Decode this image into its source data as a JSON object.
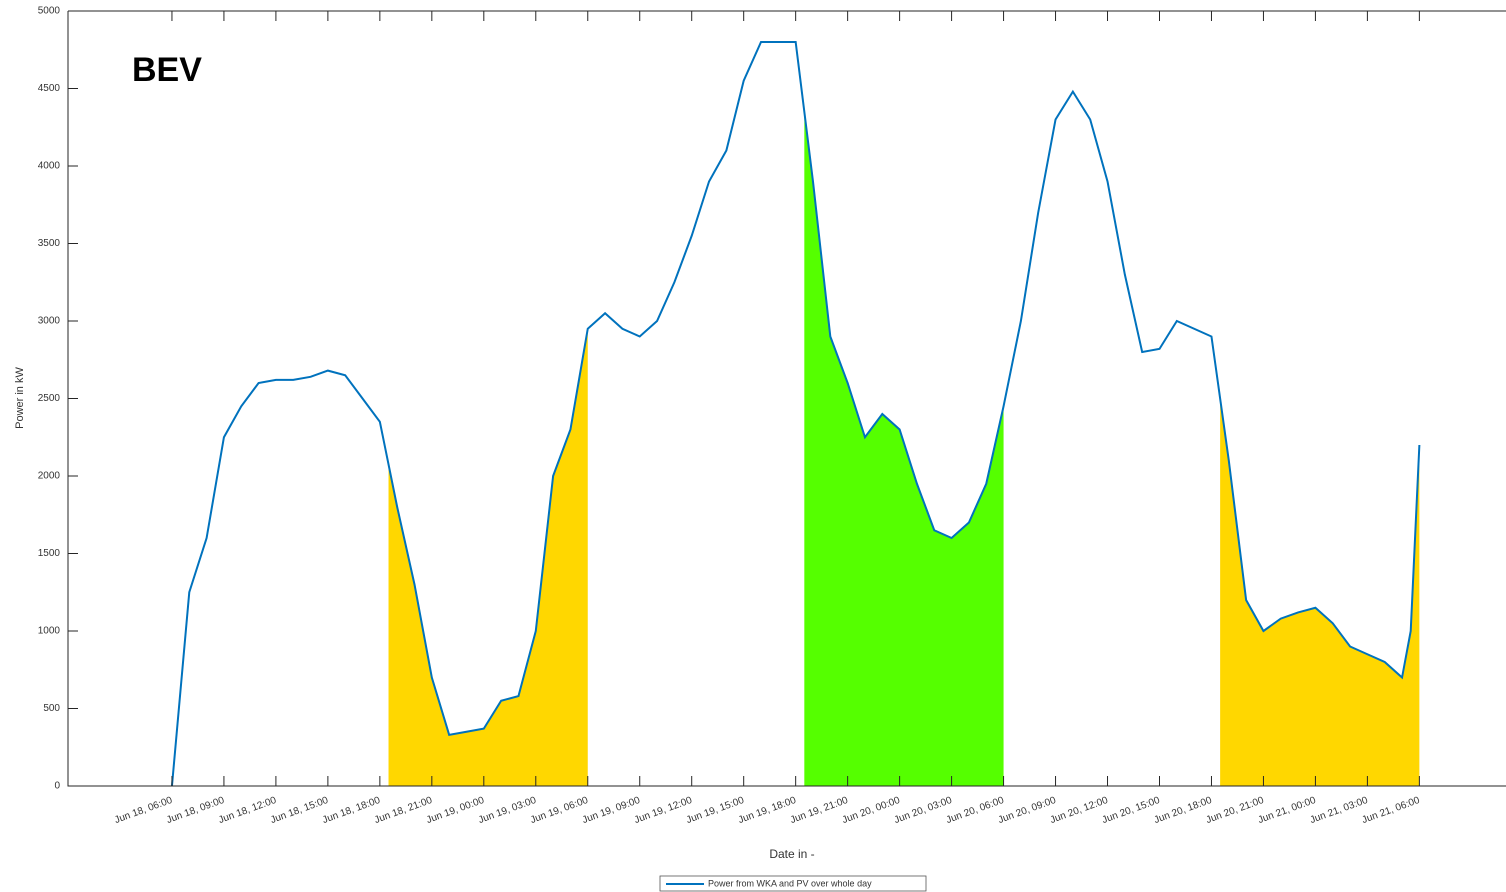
{
  "chart_data": {
    "type": "line",
    "annotation": "BEV",
    "x_label": "Date in -",
    "y_label": "Power in kW",
    "legend": "bottom",
    "x": [
      "Jun 18, 06:00",
      "Jun 18, 07:00",
      "Jun 18, 08:00",
      "Jun 18, 09:00",
      "Jun 18, 10:00",
      "Jun 18, 11:00",
      "Jun 18, 12:00",
      "Jun 18, 13:00",
      "Jun 18, 14:00",
      "Jun 18, 15:00",
      "Jun 18, 16:00",
      "Jun 18, 17:00",
      "Jun 18, 18:00",
      "Jun 18, 19:00",
      "Jun 18, 20:00",
      "Jun 18, 21:00",
      "Jun 18, 22:00",
      "Jun 18, 23:00",
      "Jun 19, 00:00",
      "Jun 19, 01:00",
      "Jun 19, 02:00",
      "Jun 19, 03:00",
      "Jun 19, 04:00",
      "Jun 19, 05:00",
      "Jun 19, 06:00",
      "Jun 19, 07:00",
      "Jun 19, 08:00",
      "Jun 19, 09:00",
      "Jun 19, 10:00",
      "Jun 19, 11:00",
      "Jun 19, 12:00",
      "Jun 19, 13:00",
      "Jun 19, 14:00",
      "Jun 19, 15:00",
      "Jun 19, 16:00",
      "Jun 19, 17:00",
      "Jun 19, 18:00",
      "Jun 19, 19:00",
      "Jun 19, 20:00",
      "Jun 19, 21:00",
      "Jun 19, 22:00",
      "Jun 19, 23:00",
      "Jun 20, 00:00",
      "Jun 20, 01:00",
      "Jun 20, 02:00",
      "Jun 20, 03:00",
      "Jun 20, 04:00",
      "Jun 20, 05:00",
      "Jun 20, 06:00",
      "Jun 20, 07:00",
      "Jun 20, 08:00",
      "Jun 20, 09:00",
      "Jun 20, 10:00",
      "Jun 20, 11:00",
      "Jun 20, 12:00",
      "Jun 20, 13:00",
      "Jun 20, 14:00",
      "Jun 20, 15:00",
      "Jun 20, 16:00",
      "Jun 20, 17:00",
      "Jun 20, 18:00",
      "Jun 20, 19:00",
      "Jun 20, 20:00",
      "Jun 20, 21:00",
      "Jun 20, 22:00",
      "Jun 20, 23:00",
      "Jun 21, 00:00",
      "Jun 21, 01:00",
      "Jun 21, 02:00",
      "Jun 21, 03:00",
      "Jun 21, 04:00",
      "Jun 21, 05:00",
      "Jun 21, 05:30",
      "Jun 21, 06:00"
    ],
    "series": [
      {
        "name": "Power from WKA and PV over whole day",
        "color": "#0072bd",
        "values": [
          0,
          1250,
          1600,
          2250,
          2450,
          2600,
          2620,
          2620,
          2640,
          2680,
          2650,
          2500,
          2350,
          1800,
          1300,
          700,
          330,
          350,
          370,
          550,
          580,
          1000,
          2000,
          2300,
          2950,
          3050,
          2950,
          2900,
          3000,
          3250,
          3550,
          3900,
          4100,
          4550,
          4800,
          4800,
          4800,
          3900,
          2900,
          2600,
          2250,
          2400,
          2300,
          1950,
          1650,
          1600,
          1700,
          1950,
          2450,
          3000,
          3700,
          4300,
          4480,
          4300,
          3900,
          3300,
          2800,
          2820,
          3000,
          2950,
          2900,
          2100,
          1200,
          1000,
          1080,
          1120,
          1150,
          1050,
          900,
          850,
          800,
          700,
          1000,
          2200
        ]
      }
    ],
    "areas": [
      {
        "color": "#ffd700",
        "start": "Jun 18, 18:30",
        "end": "Jun 19, 06:00"
      },
      {
        "color": "#55ff00",
        "start": "Jun 19, 18:30",
        "end": "Jun 20, 06:00"
      },
      {
        "color": "#ffd700",
        "start": "Jun 20, 18:30",
        "end": "Jun 21, 06:00"
      }
    ],
    "xlim": [
      "Jun 18, 00:00",
      "Jun 21, 11:00"
    ],
    "xticks": [
      "Jun 18, 06:00",
      "Jun 18, 09:00",
      "Jun 18, 12:00",
      "Jun 18, 15:00",
      "Jun 18, 18:00",
      "Jun 18, 21:00",
      "Jun 19, 00:00",
      "Jun 19, 03:00",
      "Jun 19, 06:00",
      "Jun 19, 09:00",
      "Jun 19, 12:00",
      "Jun 19, 15:00",
      "Jun 19, 18:00",
      "Jun 19, 21:00",
      "Jun 20, 00:00",
      "Jun 20, 03:00",
      "Jun 20, 06:00",
      "Jun 20, 09:00",
      "Jun 20, 12:00",
      "Jun 20, 15:00",
      "Jun 20, 18:00",
      "Jun 20, 21:00",
      "Jun 21, 00:00",
      "Jun 21, 03:00",
      "Jun 21, 06:00"
    ],
    "ylim": [
      0,
      5000
    ],
    "yticks": [
      0,
      500,
      1000,
      1500,
      2000,
      2500,
      3000,
      3500,
      4000,
      4500,
      5000
    ],
    "grid": false
  }
}
